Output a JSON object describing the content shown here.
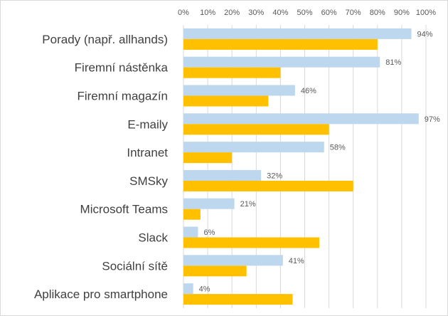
{
  "chart_data": {
    "type": "bar",
    "orientation": "horizontal",
    "categories": [
      "Porady (např. allhands)",
      "Firemní nástěnka",
      "Firemní magazín",
      "E-maily",
      "Intranet",
      "SMSky",
      "Microsoft Teams",
      "Slack",
      "Sociální sítě",
      "Aplikace pro smartphone"
    ],
    "series": [
      {
        "values": [
          94,
          81,
          46,
          97,
          58,
          32,
          21,
          6,
          41,
          4
        ],
        "color": "#bdd7ee",
        "labels": [
          "94%",
          "81%",
          "46%",
          "97%",
          "58%",
          "32%",
          "21%",
          "6%",
          "41%",
          "4%"
        ]
      },
      {
        "values": [
          80,
          40,
          35,
          60,
          20,
          70,
          7,
          56,
          26,
          45
        ],
        "color": "#ffc000"
      }
    ],
    "x_ticks": [
      "0%",
      "10%",
      "20%",
      "30%",
      "40%",
      "50%",
      "60%",
      "70%",
      "80%",
      "90%",
      "100%"
    ],
    "xlim": [
      0,
      100
    ],
    "grid": "vertical",
    "legend": "none",
    "title": "",
    "xlabel": "",
    "ylabel": ""
  },
  "colors": {
    "gridline": "#d9d9d9",
    "text": "#404040"
  }
}
